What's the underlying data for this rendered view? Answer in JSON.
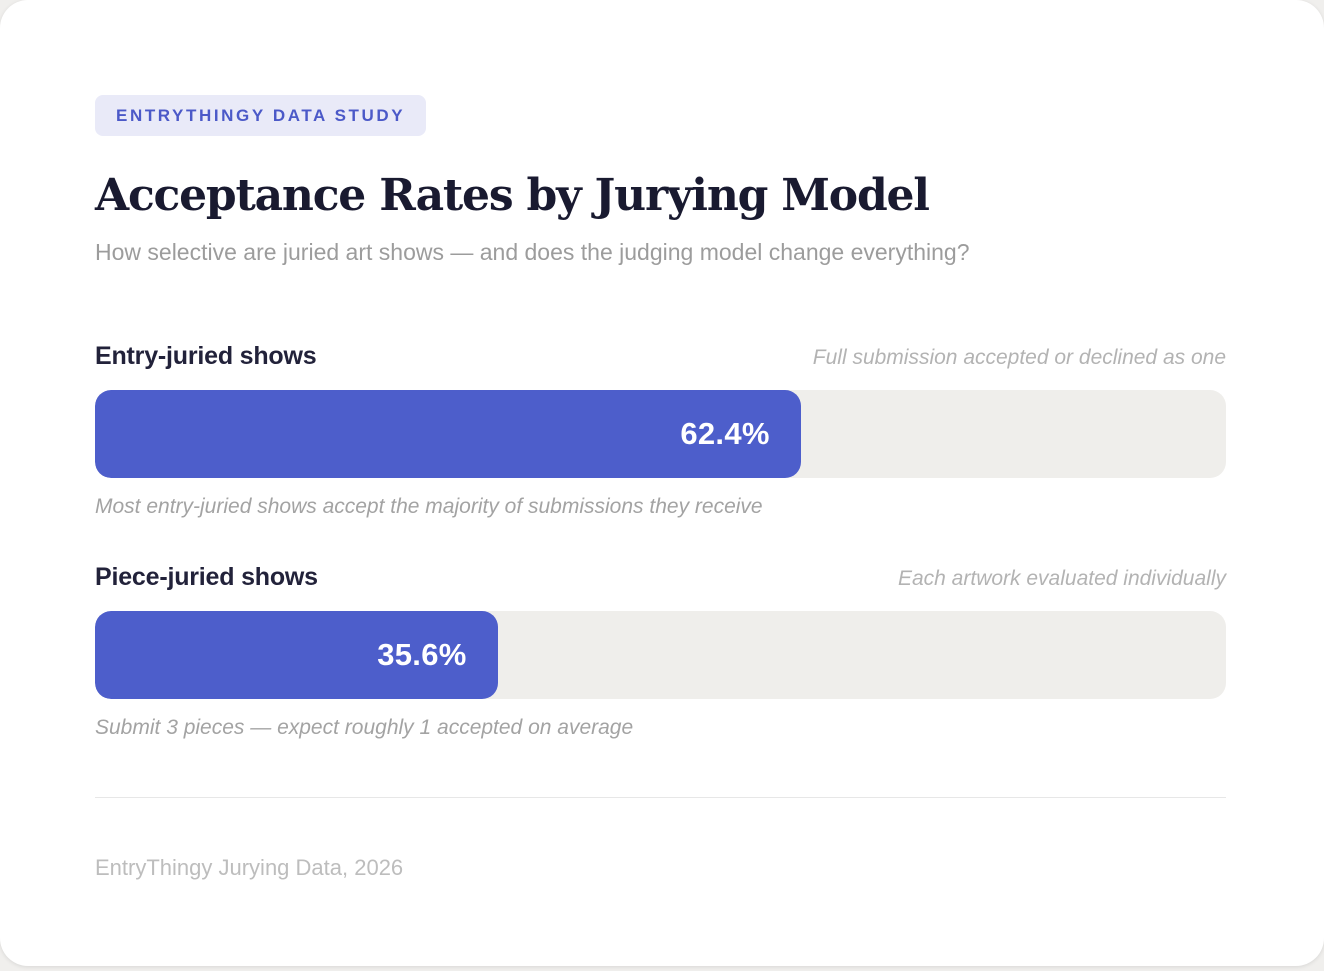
{
  "badge": {
    "label": "ENTRYTHINGY DATA STUDY"
  },
  "header": {
    "title": "Acceptance Rates by Jurying Model",
    "subtitle": "How selective are juried art shows — and does the judging model change everything?"
  },
  "rows": [
    {
      "label": "Entry-juried shows",
      "note": "Full submission accepted or declined as one",
      "value_pct": 62.4,
      "value_label": "62.4%",
      "caption": "Most entry-juried shows accept the majority of submissions they receive"
    },
    {
      "label": "Piece-juried shows",
      "note": "Each artwork evaluated individually",
      "value_pct": 35.6,
      "value_label": "35.6%",
      "caption": "Submit 3 pieces — expect roughly 1 accepted on average"
    }
  ],
  "footer": {
    "source": "EntryThingy Jurying Data, 2026"
  },
  "colors": {
    "accent": "#4d5ecb",
    "bar_track": "#efeeeb",
    "badge_bg": "#e9eaf8",
    "badge_text": "#4b59c8",
    "title_text": "#191a30"
  },
  "chart_data": {
    "type": "bar",
    "orientation": "horizontal",
    "title": "Acceptance Rates by Jurying Model",
    "subtitle": "How selective are juried art shows — and does the judging model change everything?",
    "categories": [
      "Entry-juried shows",
      "Piece-juried shows"
    ],
    "values": [
      62.4,
      35.6
    ],
    "value_labels": [
      "62.4%",
      "35.6%"
    ],
    "category_notes": [
      "Full submission accepted or declined as one",
      "Each artwork evaluated individually"
    ],
    "annotations": [
      "Most entry-juried shows accept the majority of submissions they receive",
      "Submit 3 pieces — expect roughly 1 accepted on average"
    ],
    "xlim": [
      0,
      100
    ],
    "grid": false,
    "legend": false,
    "source": "EntryThingy Jurying Data, 2026"
  }
}
